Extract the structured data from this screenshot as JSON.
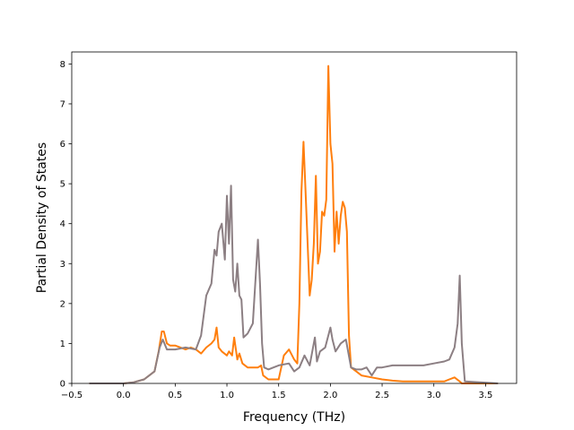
{
  "chart_data": {
    "type": "line",
    "title": "",
    "xlabel": "Frequency (THz)",
    "ylabel": "Partial Density of States",
    "xlim": [
      -0.5,
      3.8
    ],
    "ylim": [
      0,
      8.3
    ],
    "xticks": [
      -0.5,
      0.0,
      0.5,
      1.0,
      1.5,
      2.0,
      2.5,
      3.0,
      3.5
    ],
    "xtick_labels": [
      "−0.5",
      "0.0",
      "0.5",
      "1.0",
      "1.5",
      "2.0",
      "2.5",
      "3.0",
      "3.5"
    ],
    "yticks": [
      0,
      1,
      2,
      3,
      4,
      5,
      6,
      7,
      8
    ],
    "ytick_labels": [
      "0",
      "1",
      "2",
      "3",
      "4",
      "5",
      "6",
      "7",
      "8"
    ],
    "grid": false,
    "legend": "none",
    "series": [
      {
        "color": "#ff7f0e",
        "x": [
          -0.33,
          0.0,
          0.1,
          0.2,
          0.3,
          0.34,
          0.37,
          0.39,
          0.42,
          0.45,
          0.5,
          0.6,
          0.65,
          0.7,
          0.75,
          0.8,
          0.85,
          0.88,
          0.9,
          0.92,
          0.95,
          1.0,
          1.02,
          1.05,
          1.07,
          1.1,
          1.12,
          1.15,
          1.2,
          1.25,
          1.3,
          1.33,
          1.35,
          1.4,
          1.5,
          1.55,
          1.6,
          1.65,
          1.68,
          1.7,
          1.72,
          1.74,
          1.76,
          1.78,
          1.8,
          1.82,
          1.84,
          1.86,
          1.88,
          1.9,
          1.92,
          1.94,
          1.96,
          1.98,
          2.0,
          2.02,
          2.04,
          2.06,
          2.08,
          2.1,
          2.12,
          2.14,
          2.16,
          2.18,
          2.2,
          2.25,
          2.3,
          2.4,
          2.5,
          2.6,
          2.7,
          2.8,
          2.9,
          3.0,
          3.1,
          3.15,
          3.2,
          3.25,
          3.27,
          3.3,
          3.62
        ],
        "y": [
          0.0,
          0.0,
          0.03,
          0.1,
          0.3,
          0.8,
          1.3,
          1.3,
          1.0,
          0.95,
          0.95,
          0.85,
          0.9,
          0.85,
          0.75,
          0.9,
          1.0,
          1.1,
          1.4,
          0.9,
          0.8,
          0.7,
          0.8,
          0.7,
          1.15,
          0.6,
          0.75,
          0.5,
          0.4,
          0.4,
          0.4,
          0.45,
          0.2,
          0.1,
          0.1,
          0.7,
          0.85,
          0.6,
          0.5,
          2.0,
          4.8,
          6.05,
          4.8,
          3.5,
          2.2,
          2.6,
          3.5,
          5.2,
          3.0,
          3.3,
          4.3,
          4.2,
          4.6,
          7.95,
          6.0,
          5.5,
          3.3,
          4.3,
          3.5,
          4.2,
          4.55,
          4.4,
          3.8,
          1.2,
          0.4,
          0.3,
          0.2,
          0.15,
          0.1,
          0.07,
          0.05,
          0.05,
          0.05,
          0.05,
          0.05,
          0.1,
          0.15,
          0.05,
          0.0,
          0.0,
          0.0
        ]
      },
      {
        "color": "#8c7f83",
        "x": [
          -0.33,
          0.0,
          0.1,
          0.2,
          0.3,
          0.35,
          0.38,
          0.42,
          0.5,
          0.6,
          0.7,
          0.75,
          0.8,
          0.85,
          0.88,
          0.9,
          0.92,
          0.95,
          0.98,
          1.0,
          1.02,
          1.04,
          1.06,
          1.08,
          1.1,
          1.12,
          1.14,
          1.16,
          1.18,
          1.2,
          1.25,
          1.3,
          1.32,
          1.34,
          1.36,
          1.4,
          1.45,
          1.5,
          1.6,
          1.65,
          1.7,
          1.75,
          1.8,
          1.85,
          1.87,
          1.9,
          1.95,
          2.0,
          2.02,
          2.05,
          2.1,
          2.15,
          2.2,
          2.25,
          2.3,
          2.35,
          2.4,
          2.45,
          2.5,
          2.6,
          2.7,
          2.8,
          2.9,
          3.0,
          3.1,
          3.15,
          3.2,
          3.23,
          3.25,
          3.27,
          3.3,
          3.62
        ],
        "y": [
          0.0,
          0.0,
          0.03,
          0.1,
          0.3,
          0.9,
          1.1,
          0.85,
          0.85,
          0.9,
          0.85,
          1.2,
          2.2,
          2.5,
          3.35,
          3.2,
          3.8,
          4.0,
          3.1,
          4.7,
          3.5,
          4.95,
          2.6,
          2.3,
          3.0,
          2.2,
          2.1,
          1.15,
          1.2,
          1.25,
          1.5,
          3.6,
          2.5,
          1.0,
          0.4,
          0.35,
          0.4,
          0.45,
          0.5,
          0.3,
          0.4,
          0.7,
          0.45,
          1.15,
          0.55,
          0.8,
          0.9,
          1.4,
          1.1,
          0.8,
          1.0,
          1.1,
          0.4,
          0.35,
          0.35,
          0.4,
          0.2,
          0.4,
          0.4,
          0.45,
          0.45,
          0.45,
          0.45,
          0.5,
          0.55,
          0.6,
          0.9,
          1.5,
          2.7,
          1.0,
          0.05,
          0.0
        ]
      }
    ]
  }
}
